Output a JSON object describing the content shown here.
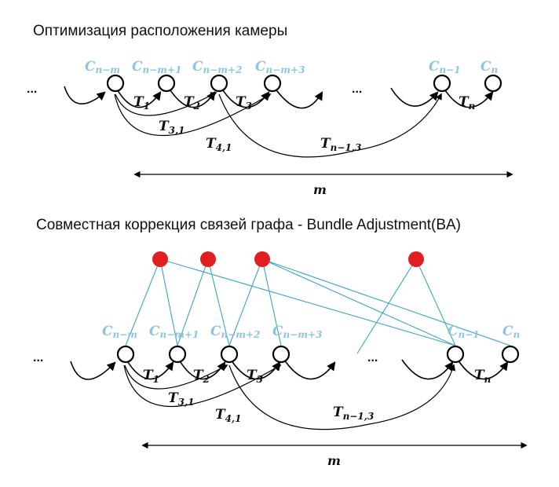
{
  "titles": {
    "top": "Оптимизация расположения камеры",
    "bottom": "Совместная коррекция связей графа - Bundle Adjustment(BA)"
  },
  "cameras": [
    {
      "base": "C",
      "sub": "n−m"
    },
    {
      "base": "C",
      "sub": "n−m+1"
    },
    {
      "base": "C",
      "sub": "n−m+2"
    },
    {
      "base": "C",
      "sub": "n−m+3"
    },
    {
      "base": "C",
      "sub": "n−1"
    },
    {
      "base": "C",
      "sub": "n"
    }
  ],
  "transforms": [
    {
      "base": "T",
      "sub": "1"
    },
    {
      "base": "T",
      "sub": "2"
    },
    {
      "base": "T",
      "sub": "3"
    },
    {
      "base": "T",
      "sub": "n"
    },
    {
      "base": "T",
      "sub": "3,1"
    },
    {
      "base": "T",
      "sub": "4,1"
    },
    {
      "base": "T",
      "sub": "n−1,3"
    }
  ],
  "ellipsis": "...",
  "window_label": "m",
  "colors": {
    "camera_label": "#8ec4e0",
    "landmark": "#e02020",
    "ray": "#3fa3c4"
  }
}
